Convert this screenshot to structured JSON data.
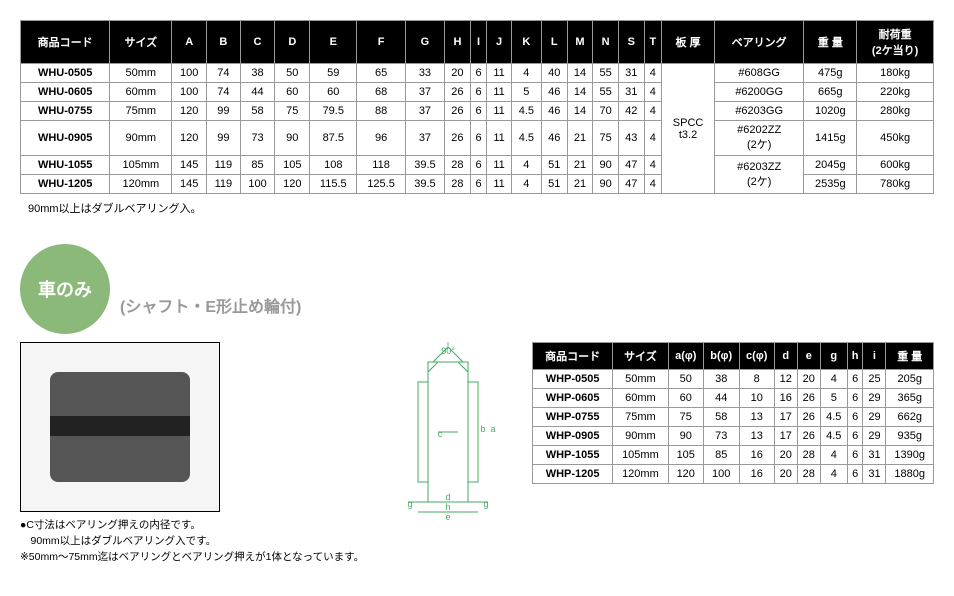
{
  "table1": {
    "headers": [
      "商品コード",
      "サイズ",
      "A",
      "B",
      "C",
      "D",
      "E",
      "F",
      "G",
      "H",
      "I",
      "J",
      "K",
      "L",
      "M",
      "N",
      "S",
      "T",
      "板 厚",
      "ベアリング",
      "重 量",
      "耐荷重\n(2ケ当り)"
    ],
    "rows": [
      [
        "WHU-0505",
        "50mm",
        "100",
        "74",
        "38",
        "50",
        "59",
        "65",
        "33",
        "20",
        "6",
        "11",
        "4",
        "40",
        "14",
        "55",
        "31",
        "4",
        "",
        "#608GG",
        "475g",
        "180kg"
      ],
      [
        "WHU-0605",
        "60mm",
        "100",
        "74",
        "44",
        "60",
        "60",
        "68",
        "37",
        "26",
        "6",
        "11",
        "5",
        "46",
        "14",
        "55",
        "31",
        "4",
        "",
        "#6200GG",
        "665g",
        "220kg"
      ],
      [
        "WHU-0755",
        "75mm",
        "120",
        "99",
        "58",
        "75",
        "79.5",
        "88",
        "37",
        "26",
        "6",
        "11",
        "4.5",
        "46",
        "14",
        "70",
        "42",
        "4",
        "SPCC\nt3.2",
        "#6203GG",
        "1020g",
        "280kg"
      ],
      [
        "WHU-0905",
        "90mm",
        "120",
        "99",
        "73",
        "90",
        "87.5",
        "96",
        "37",
        "26",
        "6",
        "11",
        "4.5",
        "46",
        "21",
        "75",
        "43",
        "4",
        "",
        "#6202ZZ\n(2ケ)",
        "1415g",
        "450kg"
      ],
      [
        "WHU-1055",
        "105mm",
        "145",
        "119",
        "85",
        "105",
        "108",
        "118",
        "39.5",
        "28",
        "6",
        "11",
        "4",
        "51",
        "21",
        "90",
        "47",
        "4",
        "",
        "#6203ZZ\n(2ケ)",
        "2045g",
        "600kg"
      ],
      [
        "WHU-1205",
        "120mm",
        "145",
        "119",
        "100",
        "120",
        "115.5",
        "125.5",
        "39.5",
        "28",
        "6",
        "11",
        "4",
        "51",
        "21",
        "90",
        "47",
        "4",
        "",
        "",
        "2535g",
        "780kg"
      ]
    ],
    "plate_merge_text": "SPCC\nt3.2",
    "bearing_merges": {
      "3": "#6202ZZ\n(2ケ)",
      "4": "#6203ZZ\n(2ケ)"
    }
  },
  "note1": "90mm以上はダブルベアリング入。",
  "badge": "車のみ",
  "subtitle": "(シャフト・E形止め輪付)",
  "table2": {
    "headers": [
      "商品コード",
      "サイズ",
      "a(φ)",
      "b(φ)",
      "c(φ)",
      "d",
      "e",
      "g",
      "h",
      "i",
      "重 量"
    ],
    "rows": [
      [
        "WHP-0505",
        "50mm",
        "50",
        "38",
        "8",
        "12",
        "20",
        "4",
        "6",
        "25",
        "205g"
      ],
      [
        "WHP-0605",
        "60mm",
        "60",
        "44",
        "10",
        "16",
        "26",
        "5",
        "6",
        "29",
        "365g"
      ],
      [
        "WHP-0755",
        "75mm",
        "75",
        "58",
        "13",
        "17",
        "26",
        "4.5",
        "6",
        "29",
        "662g"
      ],
      [
        "WHP-0905",
        "90mm",
        "90",
        "73",
        "13",
        "17",
        "26",
        "4.5",
        "6",
        "29",
        "935g"
      ],
      [
        "WHP-1055",
        "105mm",
        "105",
        "85",
        "16",
        "20",
        "28",
        "4",
        "6",
        "31",
        "1390g"
      ],
      [
        "WHP-1205",
        "120mm",
        "120",
        "100",
        "16",
        "20",
        "28",
        "4",
        "6",
        "31",
        "1880g"
      ]
    ]
  },
  "notes2": [
    "●C寸法はベアリング押えの内径です。",
    "　90mm以上はダブルベアリング入です。",
    "※50mm～75mm迄はベアリングとベアリング押えが1体となっています。"
  ],
  "diagram_labels": {
    "angle": "90°",
    "i": "i",
    "a": "a",
    "b": "b",
    "c": "c",
    "d": "d",
    "e": "e",
    "g": "g",
    "h": "h"
  },
  "colors": {
    "header_bg": "#000000",
    "header_fg": "#ffffff",
    "badge_bg": "#8bb97a",
    "subtitle": "#999999",
    "border": "#999999"
  }
}
